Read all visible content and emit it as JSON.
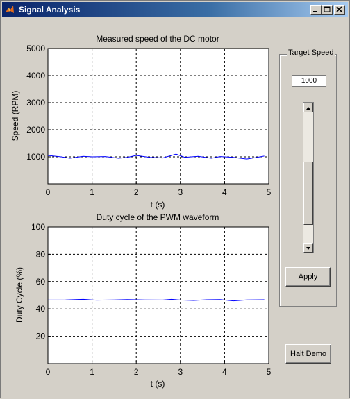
{
  "window": {
    "title": "Signal Analysis"
  },
  "titlebar_buttons": [
    "minimize",
    "maximize",
    "close"
  ],
  "colors": {
    "titlebar": "#0a246a",
    "face": "#d4d0c8",
    "series": "#0000ff"
  },
  "control_panel": {
    "title": "Target Speed",
    "target_value": "1000",
    "slider": {
      "min": 0,
      "max": 5000,
      "value": 1000
    },
    "apply_label": "Apply"
  },
  "halt_label": "Halt Demo",
  "chart_data": [
    {
      "type": "line",
      "title": "Measured speed of the DC motor",
      "xlabel": "t (s)",
      "ylabel": "Speed (RPM)",
      "xlim": [
        0,
        5
      ],
      "ylim": [
        0,
        5000
      ],
      "xticks": [
        "0",
        "1",
        "2",
        "3",
        "4",
        "5"
      ],
      "yticks": [
        "1000",
        "2000",
        "3000",
        "4000",
        "5000"
      ],
      "grid": true,
      "series": [
        {
          "x": [
            0,
            0.3,
            0.5,
            0.8,
            1.0,
            1.3,
            1.6,
            1.8,
            2.0,
            2.3,
            2.6,
            2.9,
            3.1,
            3.4,
            3.7,
            3.9,
            4.2,
            4.5,
            4.7,
            4.9
          ],
          "values": [
            1050,
            1000,
            950,
            1020,
            1000,
            1010,
            950,
            980,
            1050,
            980,
            960,
            1100,
            980,
            1020,
            950,
            1010,
            980,
            920,
            970,
            1030
          ]
        }
      ]
    },
    {
      "type": "line",
      "title": "Duty cycle of the PWM waveform",
      "xlabel": "t (s)",
      "ylabel": "Duty Cycle (%)",
      "xlim": [
        0,
        5
      ],
      "ylim": [
        0,
        100
      ],
      "xticks": [
        "0",
        "1",
        "2",
        "3",
        "4",
        "5"
      ],
      "yticks": [
        "20",
        "40",
        "60",
        "80",
        "100"
      ],
      "grid": true,
      "series": [
        {
          "x": [
            0,
            0.4,
            0.8,
            1.1,
            1.5,
            1.8,
            2.2,
            2.6,
            2.8,
            3.0,
            3.3,
            3.6,
            3.9,
            4.2,
            4.5,
            4.9
          ],
          "values": [
            46.5,
            46.6,
            47.0,
            46.4,
            46.6,
            46.8,
            46.6,
            46.5,
            47.0,
            46.5,
            46.2,
            46.7,
            46.8,
            45.9,
            46.6,
            46.7
          ]
        }
      ]
    }
  ]
}
